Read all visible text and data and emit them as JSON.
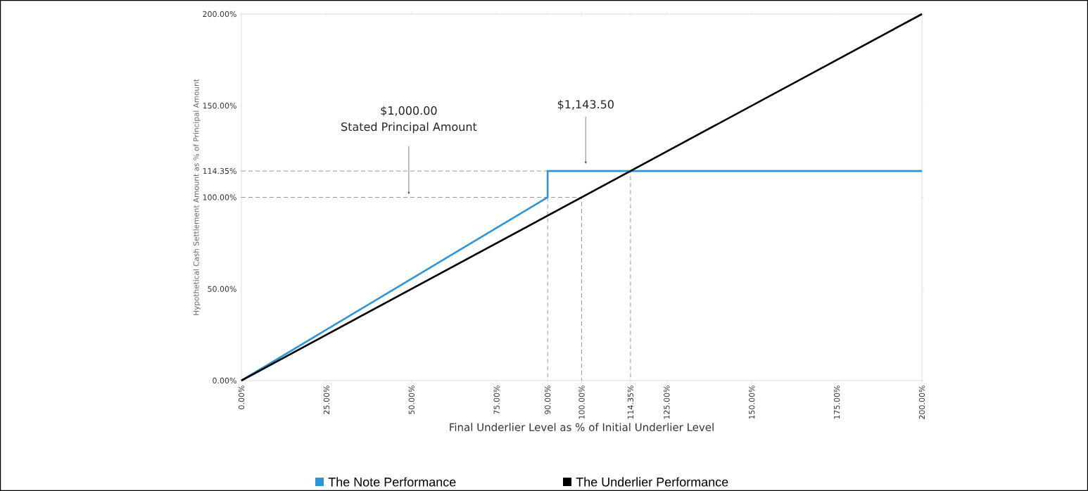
{
  "chart_data": {
    "type": "line",
    "xlabel": "Final Underlier Level as % of Initial Underlier Level",
    "ylabel": "Hypothetical Cash Settlement Amount as % of Principal Amount",
    "xlim": [
      0,
      200
    ],
    "ylim": [
      0,
      200
    ],
    "xticks": [
      {
        "value": 0,
        "label": "0.00%"
      },
      {
        "value": 25,
        "label": "25.00%"
      },
      {
        "value": 50,
        "label": "50.00%"
      },
      {
        "value": 75,
        "label": "75.00%"
      },
      {
        "value": 90,
        "label": "90.00%"
      },
      {
        "value": 100,
        "label": "100.00%"
      },
      {
        "value": 114.35,
        "label": "114.35%"
      },
      {
        "value": 125,
        "label": "125.00%"
      },
      {
        "value": 150,
        "label": "150.00%"
      },
      {
        "value": 175,
        "label": "175.00%"
      },
      {
        "value": 200,
        "label": "200.00%"
      }
    ],
    "yticks": [
      {
        "value": 0,
        "label": "0.00%"
      },
      {
        "value": 50,
        "label": "50.00%"
      },
      {
        "value": 100,
        "label": "100.00%"
      },
      {
        "value": 114.35,
        "label": "114.35%"
      },
      {
        "value": 150,
        "label": "150.00%"
      },
      {
        "value": 200,
        "label": "200.00%"
      }
    ],
    "series": [
      {
        "x": [
          0,
          100,
          100
        ],
        "values": [
          100,
          100,
          0
        ],
        "color": "#808080",
        "line_style": "dashed"
      },
      {
        "x": [
          90,
          90
        ],
        "values": [
          100,
          0
        ],
        "color": "#808080",
        "line_style": "dashed"
      },
      {
        "x": [
          0,
          114.35,
          114.35
        ],
        "values": [
          114.35,
          114.35,
          0
        ],
        "color": "#808080",
        "line_style": "dashed"
      },
      {
        "name": "The Note Performance",
        "x": [
          0,
          90,
          90,
          200
        ],
        "values": [
          0,
          100,
          114.35,
          114.35
        ],
        "color": "#2b95d8",
        "line_style": "solid"
      },
      {
        "name": "The Underlier Performance",
        "x": [
          0,
          200
        ],
        "values": [
          0,
          200
        ],
        "color": "#000000",
        "line_style": "solid"
      }
    ],
    "annotations": [
      "$1,000.00",
      "Stated Principal Amount",
      "$1,143.50"
    ],
    "grid": false,
    "legend": "bottom",
    "marker": "none"
  }
}
